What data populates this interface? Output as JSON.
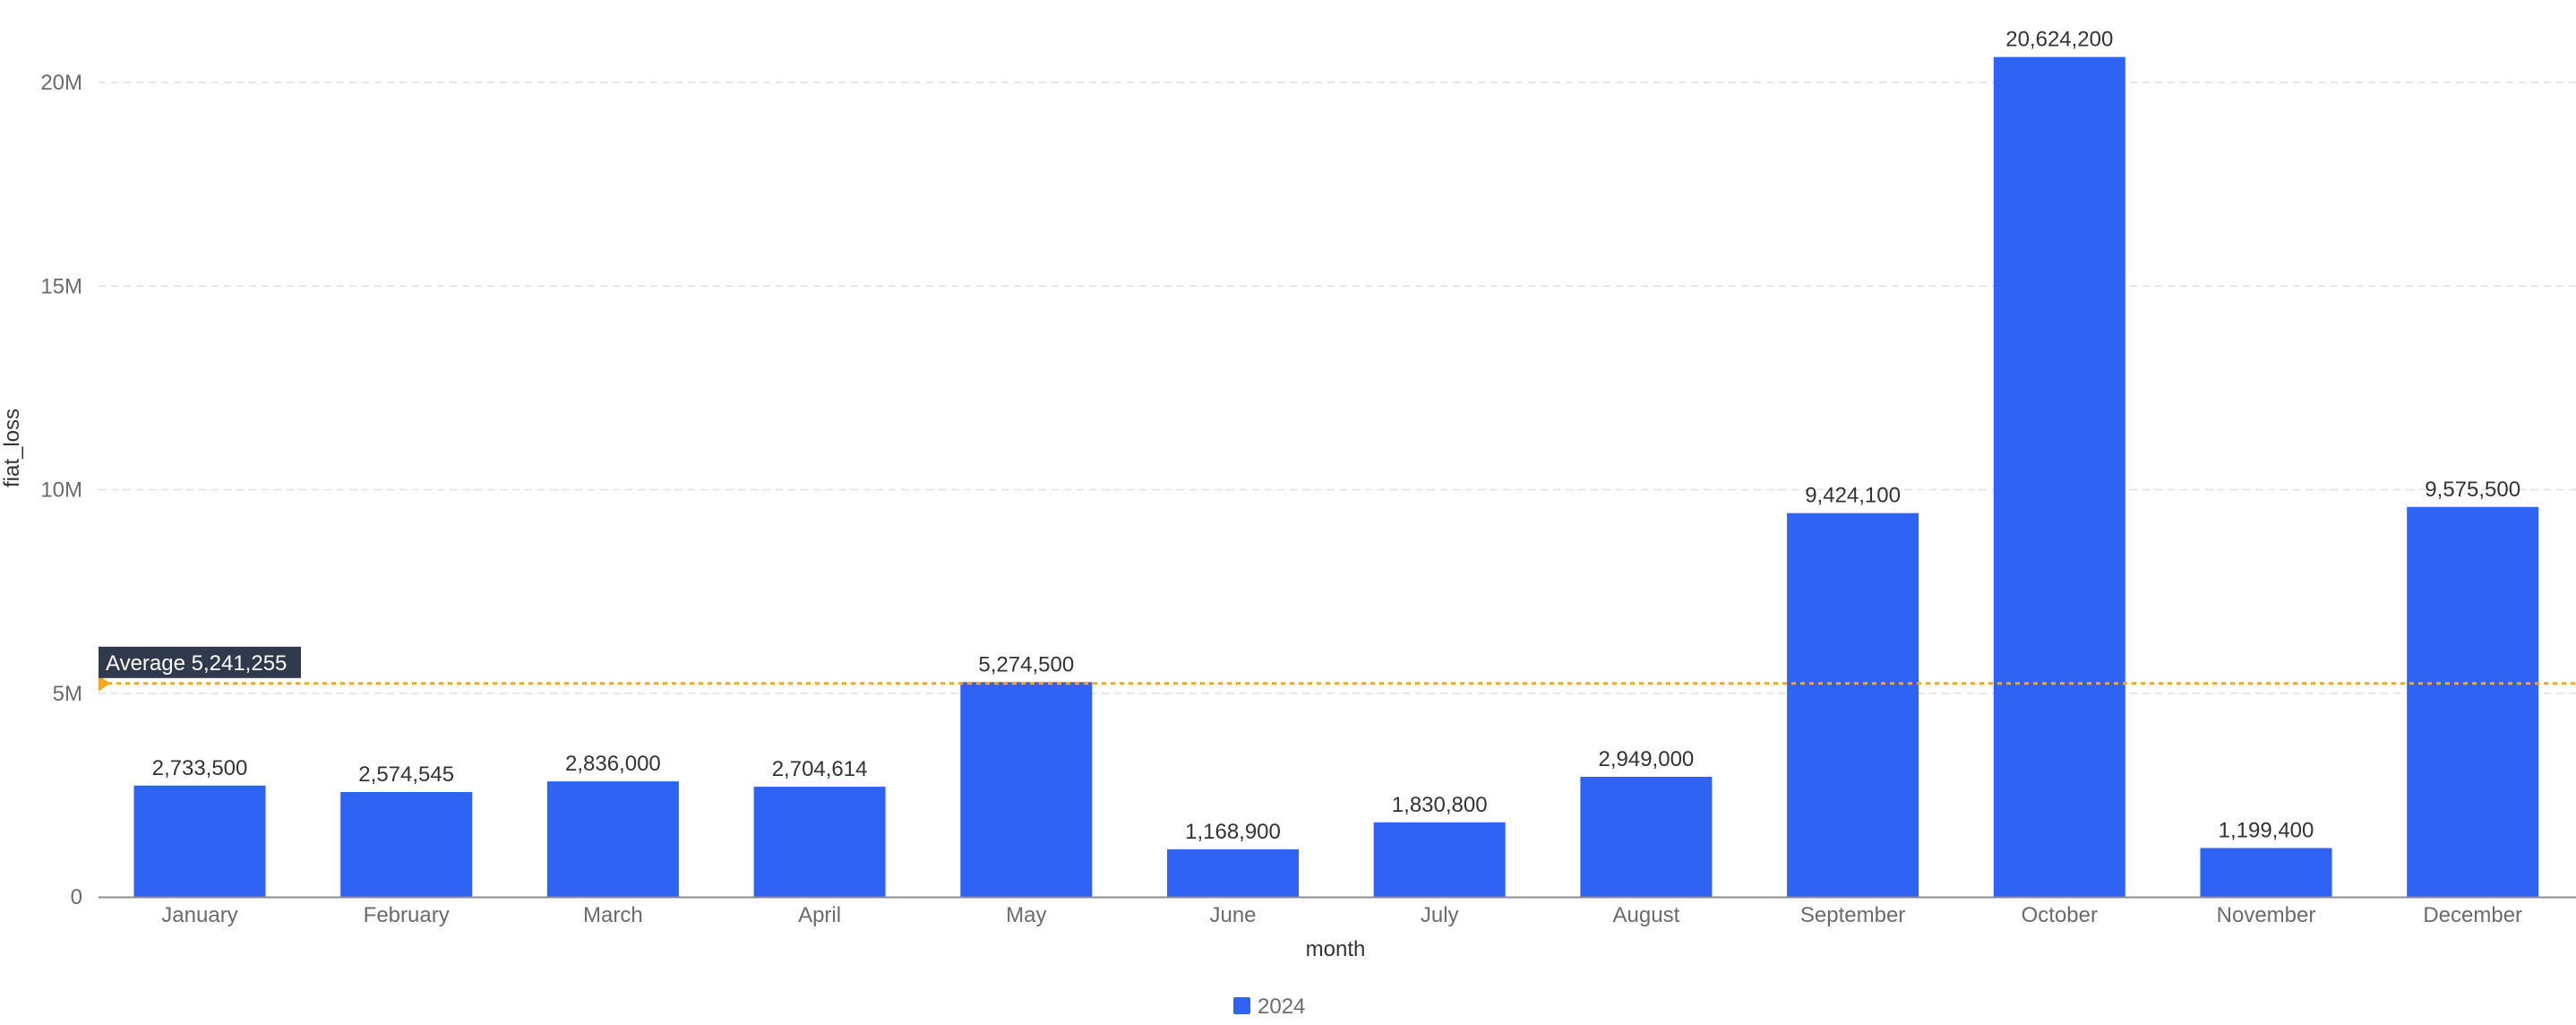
{
  "chart_data": {
    "type": "bar",
    "categories": [
      "January",
      "February",
      "March",
      "April",
      "May",
      "June",
      "July",
      "August",
      "September",
      "October",
      "November",
      "December"
    ],
    "series": [
      {
        "name": "2024",
        "values": [
          2733500,
          2574545,
          2836000,
          2704614,
          5274500,
          1168900,
          1830800,
          2949000,
          9424100,
          20624200,
          1199400,
          9575500
        ],
        "labels": [
          "2,733,500",
          "2,574,545",
          "2,836,000",
          "2,704,614",
          "5,274,500",
          "1,168,900",
          "1,830,800",
          "2,949,000",
          "9,424,100",
          "20,624,200",
          "1,199,400",
          "9,575,500"
        ],
        "color": "#2f63f4"
      }
    ],
    "xlabel": "month",
    "ylabel": "fiat_loss",
    "ylim": [
      0,
      20000000
    ],
    "yticks": [
      0,
      5000000,
      10000000,
      15000000,
      20000000
    ],
    "ytick_labels": [
      "0",
      "5M",
      "10M",
      "15M",
      "20M"
    ],
    "grid": true,
    "legend": {
      "placement": "bottom",
      "entries": [
        "2024"
      ]
    },
    "average_line": {
      "value": 5241255,
      "label": "Average 5,241,255",
      "color": "#f5a623"
    }
  }
}
